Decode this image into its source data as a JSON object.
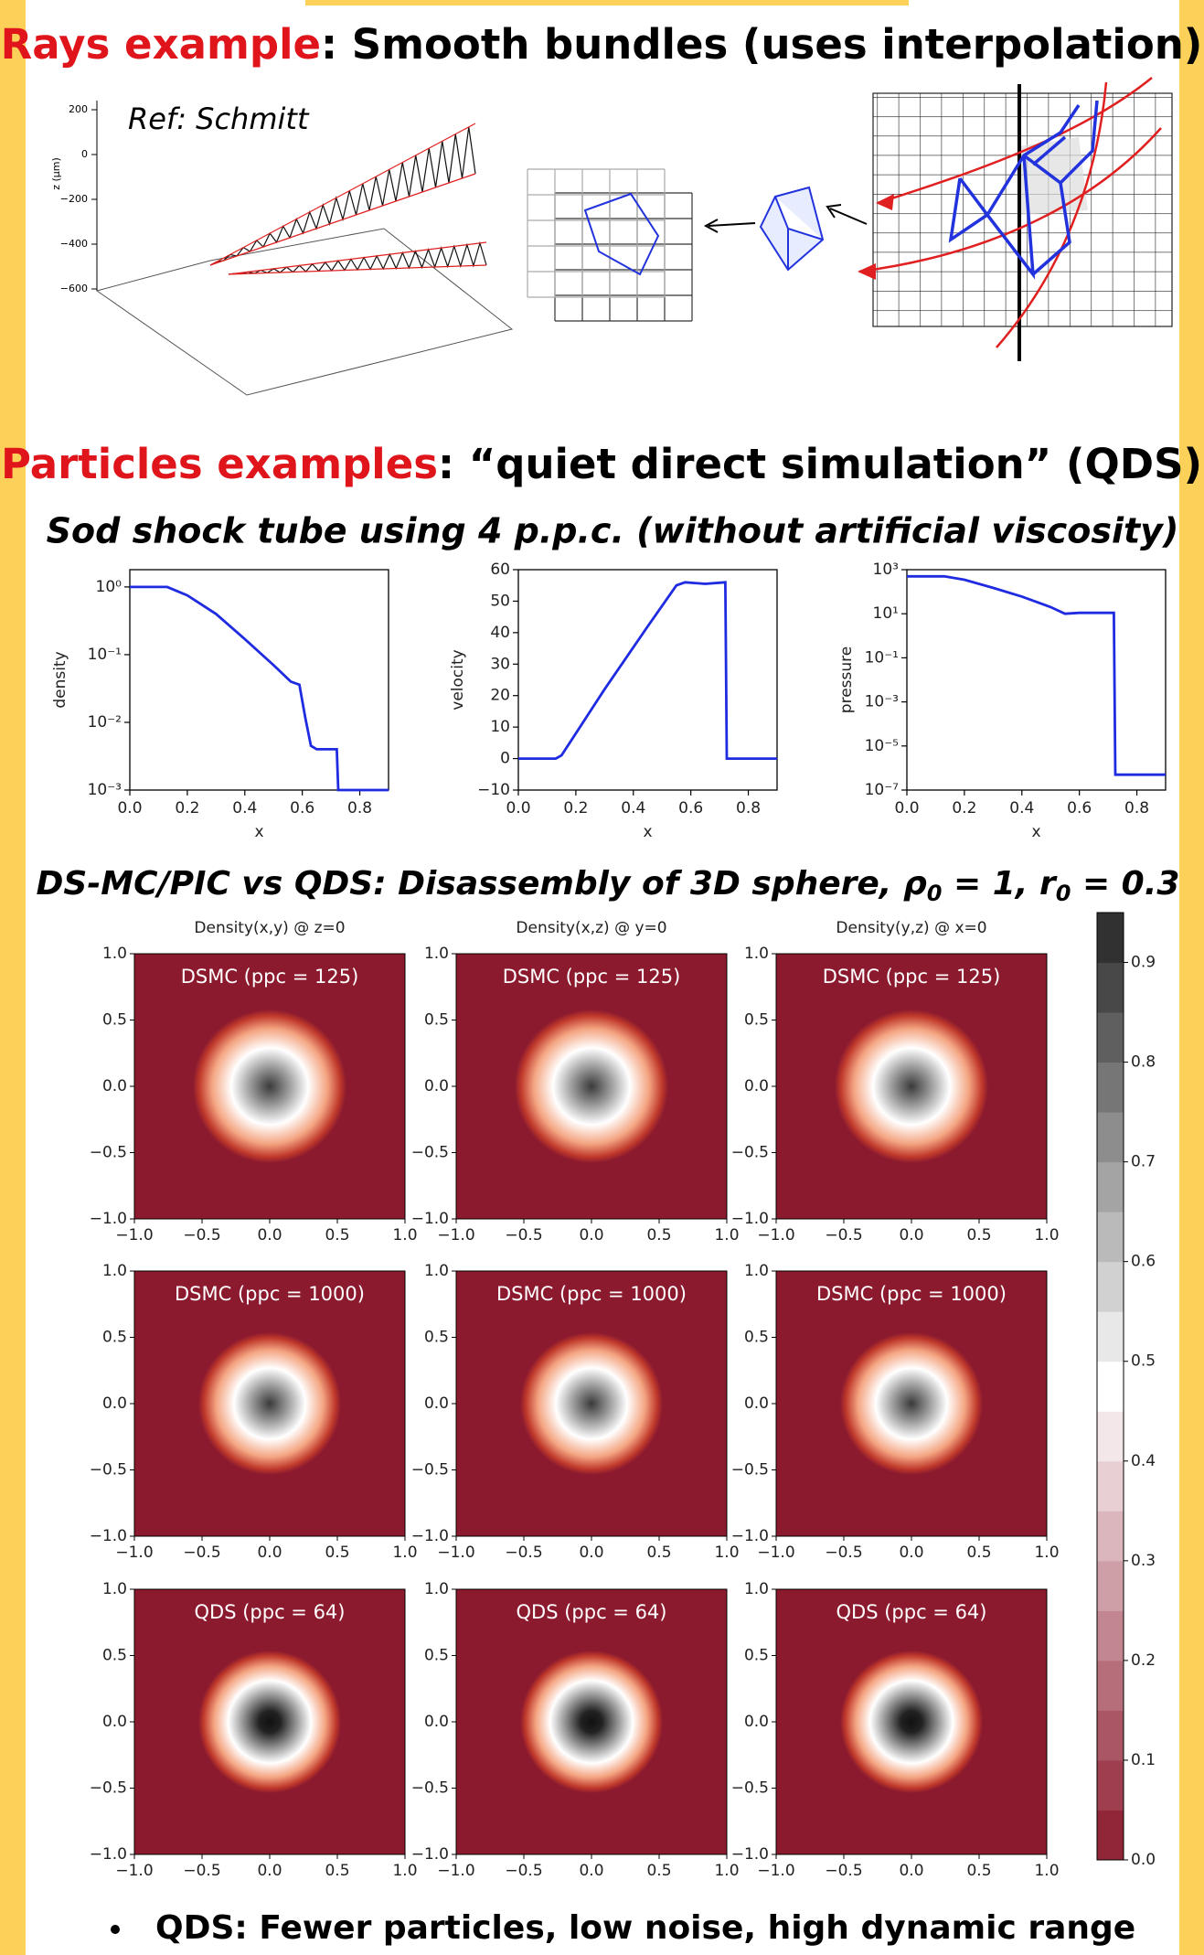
{
  "rays": {
    "title_red": "Rays example",
    "title_black": ": Smooth bundles (uses interpolation)",
    "ref": "Ref: Schmitt",
    "z_label": "z (μm)",
    "z_ticks": [
      "200",
      "0",
      "−200",
      "−400",
      "−600"
    ]
  },
  "particles": {
    "title_red": "Particles examples",
    "title_black": ": “quiet direct simulation” (QDS)",
    "subtitle": "Sod shock tube using 4 p.p.c. (without artificial viscosity)"
  },
  "sod": {
    "xlabel": "x",
    "xlim": [
      0,
      0.9
    ],
    "xticks": [
      {
        "value": 0,
        "label": "0.0"
      },
      0.2,
      0.4,
      0.6,
      0.8
    ],
    "color": "#1f2be0",
    "plots": [
      {
        "ylabel": "density",
        "log": true,
        "ylim": [
          0.001,
          1.8
        ],
        "yticks": [
          {
            "value": 1,
            "label": "10⁰"
          },
          {
            "value": 0.1,
            "label": "10⁻¹"
          },
          {
            "value": 0.01,
            "label": "10⁻²"
          },
          {
            "value": 0.001,
            "label": "10⁻³"
          }
        ],
        "x": [
          0,
          0.13,
          0.2,
          0.3,
          0.4,
          0.5,
          0.56,
          0.59,
          0.61,
          0.63,
          0.65,
          0.72,
          0.725,
          0.9
        ],
        "values": [
          1,
          1,
          0.75,
          0.4,
          0.17,
          0.07,
          0.04,
          0.036,
          0.012,
          0.0045,
          0.004,
          0.004,
          0.001,
          0.001
        ]
      },
      {
        "ylabel": "velocity",
        "log": false,
        "ylim": [
          -10,
          60
        ],
        "yticks": [
          {
            "value": -10,
            "label": "−10"
          },
          0,
          10,
          20,
          30,
          40,
          50,
          60
        ],
        "x": [
          0,
          0.13,
          0.15,
          0.3,
          0.45,
          0.55,
          0.58,
          0.65,
          0.72,
          0.725,
          0.9
        ],
        "values": [
          0,
          0,
          1,
          22,
          42,
          55,
          56,
          55.5,
          56,
          0,
          0
        ]
      },
      {
        "ylabel": "pressure",
        "log": true,
        "ylim": [
          1e-07,
          1000
        ],
        "yticks": [
          {
            "value": 1000,
            "label": "10³"
          },
          {
            "value": 10,
            "label": "10¹"
          },
          {
            "value": 0.1,
            "label": "10⁻¹"
          },
          {
            "value": 0.001,
            "label": "10⁻³"
          },
          {
            "value": 1e-05,
            "label": "10⁻⁵"
          },
          {
            "value": 1e-07,
            "label": "10⁻⁷"
          }
        ],
        "x": [
          0,
          0.13,
          0.2,
          0.3,
          0.4,
          0.5,
          0.55,
          0.6,
          0.72,
          0.725,
          0.9
        ],
        "values": [
          500,
          500,
          350,
          150,
          60,
          20,
          10,
          11,
          11,
          5e-07,
          5e-07
        ]
      }
    ]
  },
  "sphere": {
    "heading": [
      "DS-MC/PIC vs QDS: Disassembly of 3D sphere, ρ",
      "0",
      " = 1, r",
      "0",
      " = 0.3"
    ],
    "column_titles": [
      "Density(x,y) @ z=0",
      "Density(x,z) @ y=0",
      "Density(y,z) @ x=0"
    ],
    "panel_labels": [
      [
        "DSMC (ppc = 125)",
        "DSMC (ppc = 125)",
        "DSMC (ppc = 125)"
      ],
      [
        "DSMC (ppc = 1000)",
        "DSMC (ppc = 1000)",
        "DSMC (ppc = 1000)"
      ],
      [
        "QDS (ppc = 64)",
        "QDS (ppc = 64)",
        "QDS (ppc = 64)"
      ]
    ],
    "lim": [
      -1,
      1
    ],
    "ticks": [
      {
        "value": -1,
        "label": "−1.0"
      },
      {
        "value": -0.5,
        "label": "−0.5"
      },
      {
        "value": 0,
        "label": "0.0"
      },
      0.5,
      {
        "value": 1,
        "label": "1.0"
      }
    ],
    "colorbar_lim": [
      0,
      0.95
    ],
    "colorbar_ticks": [
      {
        "value": 0,
        "label": "0.0"
      },
      0.1,
      0.2,
      0.3,
      0.4,
      0.5,
      0.6,
      0.7,
      0.8,
      0.9
    ]
  },
  "bullet": "QDS: Fewer particles, low noise, high dynamic range"
}
